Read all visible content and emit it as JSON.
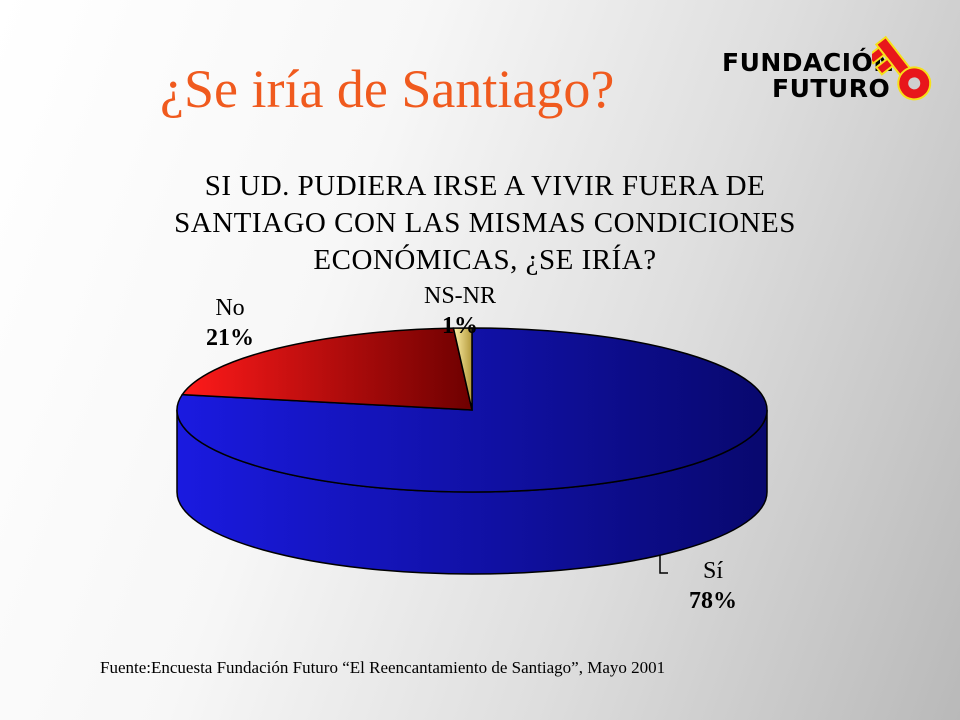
{
  "slide": {
    "title": "¿Se iría de Santiago?",
    "source": "Fuente:Encuesta Fundación Futuro  “El Reencantamiento de Santiago”, Mayo 2001"
  },
  "logo": {
    "line1": "FUNDACIÓN",
    "line2": "FUTURO",
    "colors": {
      "text": "#000000",
      "key": "#e8161b",
      "key_outline": "#f6e11a"
    }
  },
  "chart_data": {
    "type": "pie",
    "title_lines": [
      "SI UD. PUDIERA IRSE A VIVIR FUERA DE",
      "SANTIAGO CON LAS MISMAS CONDICIONES",
      "ECONÓMICAS, ¿SE IRÍA?"
    ],
    "slices": [
      {
        "label": "Sí",
        "value": 78,
        "display": "78%",
        "color": "#1a1ae0",
        "dark": "#08086e"
      },
      {
        "label": "No",
        "value": 21,
        "display": "21%",
        "color": "#ff1a1a",
        "dark": "#6e0000"
      },
      {
        "label": "NS-NR",
        "value": 1,
        "display": "1%",
        "color": "#fff0a8",
        "dark": "#b39a3c"
      }
    ],
    "style": "3d",
    "legend": "none",
    "data_labels": "outside"
  }
}
